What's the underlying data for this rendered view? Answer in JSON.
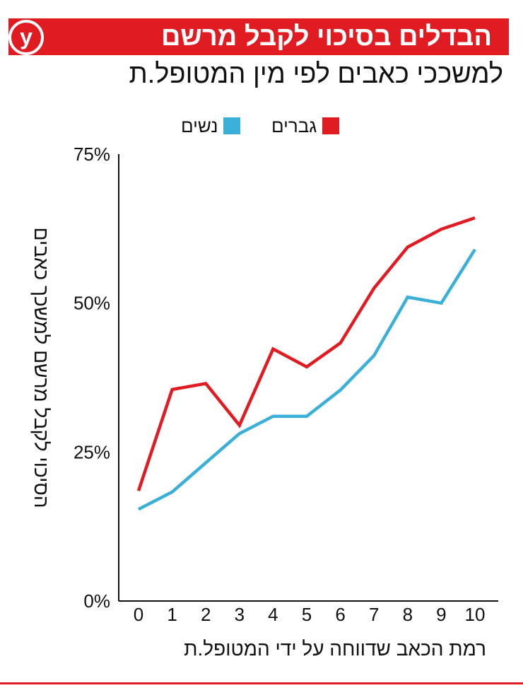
{
  "header": {
    "title": "הבדלים בסיכוי לקבל מרשם",
    "subtitle": "למשככי כאבים לפי מין המטופל.ת",
    "logo_text": "y",
    "accent_color": "#e01b22"
  },
  "legend": {
    "men": {
      "label": "גברים",
      "color": "#e01b22"
    },
    "women": {
      "label": "נשים",
      "color": "#3aafd8"
    }
  },
  "chart_data": {
    "type": "line",
    "title": "הבדלים בסיכוי לקבל מרשם",
    "subtitle": "למשככי כאבים לפי מין המטופל.ת",
    "xlabel": "רמת הכאב שדווחה על ידי המטופל.ת",
    "ylabel": "הסיכוי לקבל מרשם למשכך כאבים",
    "x": [
      0,
      1,
      2,
      3,
      4,
      5,
      6,
      7,
      8,
      9,
      10
    ],
    "x_tick_labels": [
      "0",
      "1",
      "2",
      "3",
      "4",
      "5",
      "6",
      "7",
      "8",
      "9",
      "10"
    ],
    "y_tick_values": [
      0,
      25,
      50,
      75
    ],
    "y_tick_labels": [
      "0%",
      "25%",
      "50%",
      "75%"
    ],
    "ylim": [
      0,
      75
    ],
    "grid": false,
    "legend_position": "top",
    "series": [
      {
        "name": "גברים",
        "color": "#e01b22",
        "values": [
          18.5,
          35.5,
          36.5,
          29.5,
          42.3,
          39.3,
          43.3,
          52.5,
          59.4,
          62.4,
          64.3
        ]
      },
      {
        "name": "נשים",
        "color": "#3aafd8",
        "values": [
          15.4,
          18.3,
          23.2,
          28.1,
          31.0,
          31.0,
          35.4,
          41.2,
          51.0,
          50.0,
          59.0
        ]
      }
    ]
  }
}
